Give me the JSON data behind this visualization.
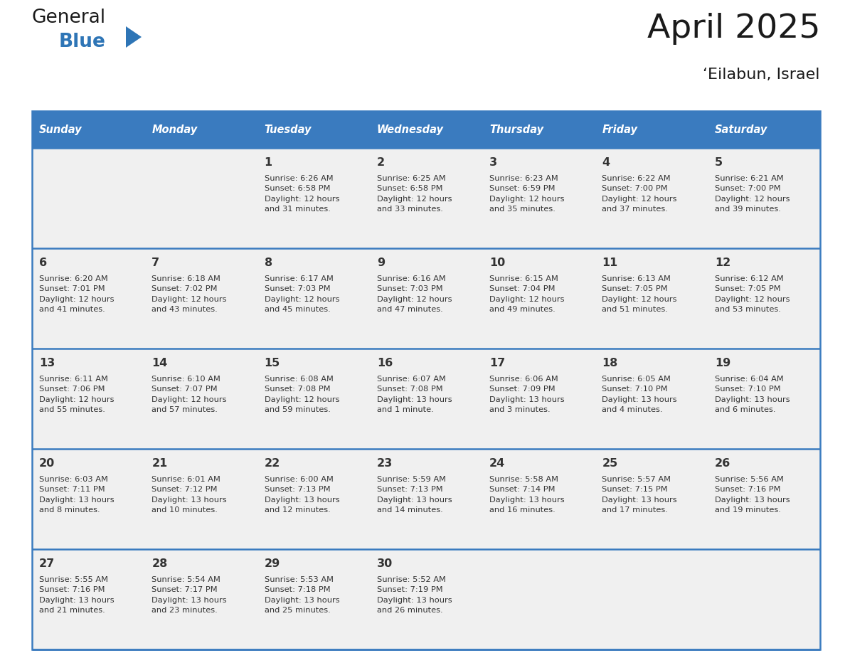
{
  "title": "April 2025",
  "subtitle": "‘Eilabun, Israel",
  "days_of_week": [
    "Sunday",
    "Monday",
    "Tuesday",
    "Wednesday",
    "Thursday",
    "Friday",
    "Saturday"
  ],
  "header_bg": "#3A7BBF",
  "header_text_color": "#FFFFFF",
  "cell_bg_gray": "#F0F0F0",
  "cell_bg_white": "#FFFFFF",
  "row_line_color": "#3A7BBF",
  "text_color": "#333333",
  "title_color": "#1A1A1A",
  "logo_dark_color": "#1A1A1A",
  "logo_blue_color": "#2E75B6",
  "weeks": [
    [
      {
        "day": "",
        "info": ""
      },
      {
        "day": "",
        "info": ""
      },
      {
        "day": "1",
        "info": "Sunrise: 6:26 AM\nSunset: 6:58 PM\nDaylight: 12 hours\nand 31 minutes."
      },
      {
        "day": "2",
        "info": "Sunrise: 6:25 AM\nSunset: 6:58 PM\nDaylight: 12 hours\nand 33 minutes."
      },
      {
        "day": "3",
        "info": "Sunrise: 6:23 AM\nSunset: 6:59 PM\nDaylight: 12 hours\nand 35 minutes."
      },
      {
        "day": "4",
        "info": "Sunrise: 6:22 AM\nSunset: 7:00 PM\nDaylight: 12 hours\nand 37 minutes."
      },
      {
        "day": "5",
        "info": "Sunrise: 6:21 AM\nSunset: 7:00 PM\nDaylight: 12 hours\nand 39 minutes."
      }
    ],
    [
      {
        "day": "6",
        "info": "Sunrise: 6:20 AM\nSunset: 7:01 PM\nDaylight: 12 hours\nand 41 minutes."
      },
      {
        "day": "7",
        "info": "Sunrise: 6:18 AM\nSunset: 7:02 PM\nDaylight: 12 hours\nand 43 minutes."
      },
      {
        "day": "8",
        "info": "Sunrise: 6:17 AM\nSunset: 7:03 PM\nDaylight: 12 hours\nand 45 minutes."
      },
      {
        "day": "9",
        "info": "Sunrise: 6:16 AM\nSunset: 7:03 PM\nDaylight: 12 hours\nand 47 minutes."
      },
      {
        "day": "10",
        "info": "Sunrise: 6:15 AM\nSunset: 7:04 PM\nDaylight: 12 hours\nand 49 minutes."
      },
      {
        "day": "11",
        "info": "Sunrise: 6:13 AM\nSunset: 7:05 PM\nDaylight: 12 hours\nand 51 minutes."
      },
      {
        "day": "12",
        "info": "Sunrise: 6:12 AM\nSunset: 7:05 PM\nDaylight: 12 hours\nand 53 minutes."
      }
    ],
    [
      {
        "day": "13",
        "info": "Sunrise: 6:11 AM\nSunset: 7:06 PM\nDaylight: 12 hours\nand 55 minutes."
      },
      {
        "day": "14",
        "info": "Sunrise: 6:10 AM\nSunset: 7:07 PM\nDaylight: 12 hours\nand 57 minutes."
      },
      {
        "day": "15",
        "info": "Sunrise: 6:08 AM\nSunset: 7:08 PM\nDaylight: 12 hours\nand 59 minutes."
      },
      {
        "day": "16",
        "info": "Sunrise: 6:07 AM\nSunset: 7:08 PM\nDaylight: 13 hours\nand 1 minute."
      },
      {
        "day": "17",
        "info": "Sunrise: 6:06 AM\nSunset: 7:09 PM\nDaylight: 13 hours\nand 3 minutes."
      },
      {
        "day": "18",
        "info": "Sunrise: 6:05 AM\nSunset: 7:10 PM\nDaylight: 13 hours\nand 4 minutes."
      },
      {
        "day": "19",
        "info": "Sunrise: 6:04 AM\nSunset: 7:10 PM\nDaylight: 13 hours\nand 6 minutes."
      }
    ],
    [
      {
        "day": "20",
        "info": "Sunrise: 6:03 AM\nSunset: 7:11 PM\nDaylight: 13 hours\nand 8 minutes."
      },
      {
        "day": "21",
        "info": "Sunrise: 6:01 AM\nSunset: 7:12 PM\nDaylight: 13 hours\nand 10 minutes."
      },
      {
        "day": "22",
        "info": "Sunrise: 6:00 AM\nSunset: 7:13 PM\nDaylight: 13 hours\nand 12 minutes."
      },
      {
        "day": "23",
        "info": "Sunrise: 5:59 AM\nSunset: 7:13 PM\nDaylight: 13 hours\nand 14 minutes."
      },
      {
        "day": "24",
        "info": "Sunrise: 5:58 AM\nSunset: 7:14 PM\nDaylight: 13 hours\nand 16 minutes."
      },
      {
        "day": "25",
        "info": "Sunrise: 5:57 AM\nSunset: 7:15 PM\nDaylight: 13 hours\nand 17 minutes."
      },
      {
        "day": "26",
        "info": "Sunrise: 5:56 AM\nSunset: 7:16 PM\nDaylight: 13 hours\nand 19 minutes."
      }
    ],
    [
      {
        "day": "27",
        "info": "Sunrise: 5:55 AM\nSunset: 7:16 PM\nDaylight: 13 hours\nand 21 minutes."
      },
      {
        "day": "28",
        "info": "Sunrise: 5:54 AM\nSunset: 7:17 PM\nDaylight: 13 hours\nand 23 minutes."
      },
      {
        "day": "29",
        "info": "Sunrise: 5:53 AM\nSunset: 7:18 PM\nDaylight: 13 hours\nand 25 minutes."
      },
      {
        "day": "30",
        "info": "Sunrise: 5:52 AM\nSunset: 7:19 PM\nDaylight: 13 hours\nand 26 minutes."
      },
      {
        "day": "",
        "info": ""
      },
      {
        "day": "",
        "info": ""
      },
      {
        "day": "",
        "info": ""
      }
    ]
  ]
}
